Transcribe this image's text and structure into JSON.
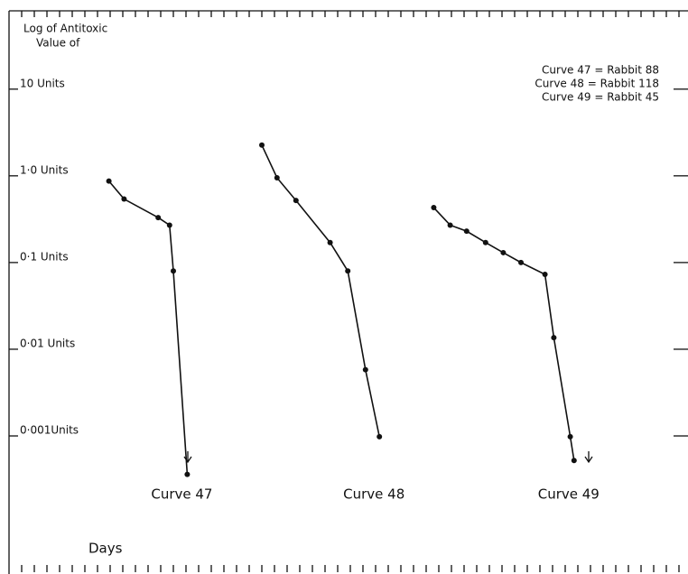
{
  "chart_data": {
    "type": "line",
    "ylabel": [
      "Log of Antitoxic",
      "Value of"
    ],
    "xlabel": "Days",
    "log_y": true,
    "legend": "upper right",
    "legend_entries": [
      "Curve 47 = Rabbit 88",
      "Curve 48 = Rabbit 118",
      "Curve 49 = Rabbit 45"
    ],
    "xlim": [
      0,
      53
    ],
    "xticks": [
      1,
      2,
      3,
      4,
      5,
      6,
      7,
      8,
      9,
      10,
      11,
      12,
      13,
      14,
      15,
      16,
      17,
      18,
      19,
      20,
      21,
      22,
      23,
      24,
      25,
      26,
      27,
      28,
      29,
      30,
      31,
      32,
      33,
      34,
      35,
      36,
      37,
      38,
      39,
      40,
      41,
      42,
      43,
      44,
      45,
      46,
      47,
      48,
      49,
      50,
      51,
      52,
      53
    ],
    "ylim": [
      5e-05,
      60
    ],
    "yticks": [
      {
        "value": 10,
        "label": "10 Units"
      },
      {
        "value": 1,
        "label": "1·0 Units"
      },
      {
        "value": 0.1,
        "label": "0·1 Units"
      },
      {
        "value": 0.01,
        "label": "0·01 Units"
      },
      {
        "value": 0.001,
        "label": "0·001Units"
      }
    ],
    "series": [
      {
        "name": "Curve 47",
        "color": "#111111",
        "x": [
          7.9,
          9.1,
          11.8,
          12.7,
          13,
          14.1
        ],
        "values": [
          0.87,
          0.54,
          0.33,
          0.27,
          0.08,
          0.00036
        ]
      },
      {
        "name": "Curve 48",
        "color": "#111111",
        "x": [
          20,
          21.2,
          22.7,
          25.4,
          26.8,
          28.2,
          29.3
        ],
        "values": [
          2.26,
          0.95,
          0.52,
          0.17,
          0.08,
          0.0058,
          0.00098
        ]
      },
      {
        "name": "Curve 49",
        "color": "#111111",
        "x": [
          33.6,
          34.9,
          36.2,
          37.7,
          39.1,
          40.5,
          42.4,
          43.1,
          44.4,
          44.7
        ],
        "values": [
          0.43,
          0.27,
          0.23,
          0.17,
          0.13,
          0.1,
          0.073,
          0.0136,
          0.00098,
          0.00052
        ]
      }
    ]
  }
}
